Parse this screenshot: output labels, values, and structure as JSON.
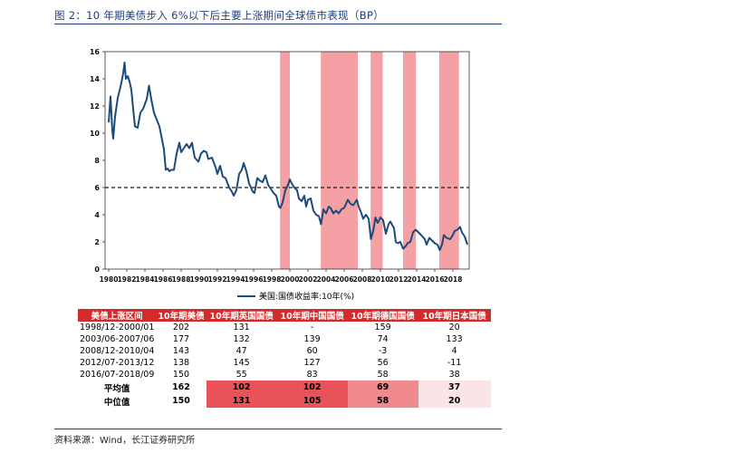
{
  "figure": {
    "title": "图 2：10 年期美债步入 6%以下后主要上涨期间全球债市表现（BP）",
    "source": "资料来源：Wind，长江证券研究所"
  },
  "chart_data": {
    "type": "line",
    "title": "",
    "xlabel": "",
    "ylabel": "",
    "xlim": [
      1979.6,
      2019.8
    ],
    "ylim": [
      0,
      16
    ],
    "y_ticks": [
      0,
      2,
      4,
      6,
      8,
      10,
      12,
      14,
      16
    ],
    "x_tick_labels": [
      "1980",
      "1982",
      "1984",
      "1986",
      "1988",
      "1990",
      "1992",
      "1994",
      "1996",
      "1998",
      "2000",
      "2002",
      "2004",
      "2006",
      "2008",
      "2010",
      "2012",
      "2014",
      "2016",
      "2018"
    ],
    "reference_line": {
      "y": 6,
      "style": "dashed",
      "color": "#1a1a1a"
    },
    "shaded_periods": [
      [
        1998.92,
        2000.0
      ],
      [
        2003.42,
        2007.5
      ],
      [
        2008.92,
        2010.25
      ],
      [
        2012.5,
        2013.92
      ],
      [
        2016.5,
        2018.67
      ]
    ],
    "shade_color": "#f4a0a4",
    "series": [
      {
        "name": "美国:国债收益率:10年(%)",
        "color": "#1c4a7a",
        "points": [
          [
            1980.0,
            10.8
          ],
          [
            1980.2,
            12.7
          ],
          [
            1980.4,
            10.2
          ],
          [
            1980.5,
            9.6
          ],
          [
            1980.7,
            11.2
          ],
          [
            1981.0,
            12.6
          ],
          [
            1981.3,
            13.4
          ],
          [
            1981.6,
            14.4
          ],
          [
            1981.75,
            15.2
          ],
          [
            1981.9,
            14.0
          ],
          [
            1982.1,
            14.2
          ],
          [
            1982.3,
            13.8
          ],
          [
            1982.5,
            13.2
          ],
          [
            1982.7,
            11.8
          ],
          [
            1982.9,
            10.5
          ],
          [
            1983.2,
            10.4
          ],
          [
            1983.5,
            11.5
          ],
          [
            1983.8,
            11.8
          ],
          [
            1984.2,
            12.5
          ],
          [
            1984.45,
            13.5
          ],
          [
            1984.7,
            12.5
          ],
          [
            1985.0,
            11.5
          ],
          [
            1985.3,
            11.0
          ],
          [
            1985.6,
            10.5
          ],
          [
            1985.9,
            9.5
          ],
          [
            1986.1,
            8.8
          ],
          [
            1986.3,
            7.3
          ],
          [
            1986.5,
            7.4
          ],
          [
            1986.7,
            7.2
          ],
          [
            1986.9,
            7.3
          ],
          [
            1987.2,
            7.3
          ],
          [
            1987.5,
            8.5
          ],
          [
            1987.8,
            9.3
          ],
          [
            1988.0,
            8.6
          ],
          [
            1988.3,
            8.9
          ],
          [
            1988.6,
            9.2
          ],
          [
            1988.9,
            8.9
          ],
          [
            1989.2,
            9.3
          ],
          [
            1989.5,
            8.2
          ],
          [
            1989.9,
            7.9
          ],
          [
            1990.2,
            8.5
          ],
          [
            1990.5,
            8.7
          ],
          [
            1990.8,
            8.6
          ],
          [
            1991.0,
            8.1
          ],
          [
            1991.4,
            8.2
          ],
          [
            1991.8,
            7.5
          ],
          [
            1992.0,
            7.0
          ],
          [
            1992.3,
            7.6
          ],
          [
            1992.6,
            6.8
          ],
          [
            1992.9,
            6.7
          ],
          [
            1993.3,
            6.0
          ],
          [
            1993.6,
            5.7
          ],
          [
            1993.8,
            5.4
          ],
          [
            1994.1,
            5.8
          ],
          [
            1994.4,
            7.0
          ],
          [
            1994.7,
            7.3
          ],
          [
            1994.9,
            7.8
          ],
          [
            1995.2,
            7.2
          ],
          [
            1995.5,
            6.3
          ],
          [
            1995.9,
            5.7
          ],
          [
            1996.1,
            5.6
          ],
          [
            1996.4,
            6.7
          ],
          [
            1996.7,
            6.5
          ],
          [
            1997.0,
            6.4
          ],
          [
            1997.3,
            6.9
          ],
          [
            1997.6,
            6.2
          ],
          [
            1997.9,
            5.9
          ],
          [
            1998.2,
            5.6
          ],
          [
            1998.5,
            5.4
          ],
          [
            1998.8,
            4.6
          ],
          [
            1998.95,
            4.5
          ],
          [
            1999.2,
            4.9
          ],
          [
            1999.5,
            5.8
          ],
          [
            1999.8,
            6.2
          ],
          [
            2000.0,
            6.6
          ],
          [
            2000.2,
            6.3
          ],
          [
            2000.5,
            6.0
          ],
          [
            2000.8,
            5.8
          ],
          [
            2001.0,
            5.2
          ],
          [
            2001.3,
            5.0
          ],
          [
            2001.6,
            5.4
          ],
          [
            2001.8,
            4.6
          ],
          [
            2002.0,
            5.1
          ],
          [
            2002.3,
            5.2
          ],
          [
            2002.6,
            4.3
          ],
          [
            2002.9,
            4.0
          ],
          [
            2003.2,
            3.9
          ],
          [
            2003.45,
            3.3
          ],
          [
            2003.7,
            4.4
          ],
          [
            2004.0,
            4.1
          ],
          [
            2004.3,
            4.6
          ],
          [
            2004.5,
            4.5
          ],
          [
            2004.8,
            4.1
          ],
          [
            2005.1,
            4.3
          ],
          [
            2005.4,
            4.1
          ],
          [
            2005.7,
            4.4
          ],
          [
            2006.0,
            4.5
          ],
          [
            2006.4,
            5.1
          ],
          [
            2006.7,
            4.8
          ],
          [
            2007.0,
            4.7
          ],
          [
            2007.4,
            5.1
          ],
          [
            2007.6,
            4.6
          ],
          [
            2007.9,
            4.1
          ],
          [
            2008.1,
            3.7
          ],
          [
            2008.4,
            4.0
          ],
          [
            2008.7,
            3.7
          ],
          [
            2008.95,
            2.2
          ],
          [
            2009.2,
            2.8
          ],
          [
            2009.45,
            3.8
          ],
          [
            2009.7,
            3.4
          ],
          [
            2010.0,
            3.8
          ],
          [
            2010.3,
            3.6
          ],
          [
            2010.6,
            2.6
          ],
          [
            2010.9,
            3.3
          ],
          [
            2011.1,
            3.5
          ],
          [
            2011.5,
            3.0
          ],
          [
            2011.7,
            2.0
          ],
          [
            2011.9,
            1.9
          ],
          [
            2012.2,
            2.0
          ],
          [
            2012.5,
            1.5
          ],
          [
            2012.8,
            1.7
          ],
          [
            2013.0,
            1.9
          ],
          [
            2013.3,
            2.0
          ],
          [
            2013.6,
            2.7
          ],
          [
            2013.9,
            2.9
          ],
          [
            2014.2,
            2.7
          ],
          [
            2014.5,
            2.5
          ],
          [
            2014.9,
            2.2
          ],
          [
            2015.1,
            1.8
          ],
          [
            2015.4,
            2.3
          ],
          [
            2015.7,
            2.1
          ],
          [
            2016.0,
            1.9
          ],
          [
            2016.3,
            1.8
          ],
          [
            2016.55,
            1.4
          ],
          [
            2016.8,
            1.8
          ],
          [
            2017.0,
            2.5
          ],
          [
            2017.3,
            2.3
          ],
          [
            2017.7,
            2.2
          ],
          [
            2017.9,
            2.4
          ],
          [
            2018.2,
            2.8
          ],
          [
            2018.5,
            2.9
          ],
          [
            2018.8,
            3.1
          ],
          [
            2019.0,
            2.7
          ],
          [
            2019.3,
            2.4
          ],
          [
            2019.6,
            1.8
          ]
        ]
      }
    ],
    "table": {
      "headers": [
        "美债上涨区间",
        "10年期美债",
        "10年期英国国债",
        "10年期中国国债",
        "10年期德国国债",
        "10年期日本国债"
      ],
      "rows": [
        [
          "1998/12-2000/01",
          "202",
          "131",
          "-",
          "159",
          "20"
        ],
        [
          "2003/06-2007/06",
          "177",
          "132",
          "139",
          "74",
          "133"
        ],
        [
          "2008/12-2010/04",
          "143",
          "47",
          "60",
          "-3",
          "4"
        ],
        [
          "2012/07-2013/12",
          "138",
          "145",
          "127",
          "56",
          "-11"
        ],
        [
          "2016/07-2018/09",
          "150",
          "55",
          "83",
          "58",
          "38"
        ]
      ],
      "summary": [
        [
          "平均值",
          "162",
          "102",
          "102",
          "69",
          "37"
        ],
        [
          "中位值",
          "150",
          "131",
          "105",
          "58",
          "20"
        ]
      ]
    }
  }
}
